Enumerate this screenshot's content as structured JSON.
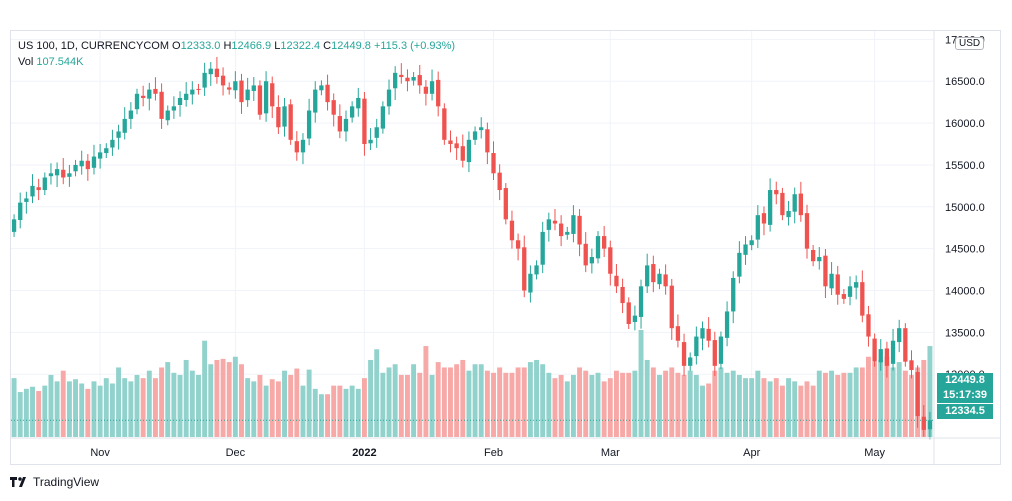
{
  "header": {
    "symbol": "US 100, 1D, CURRENCYCOM",
    "open_label": "O",
    "open": "12333.0",
    "high_label": "H",
    "high": "12466.9",
    "low_label": "L",
    "low": "12322.4",
    "close_label": "C",
    "close": "12449.8",
    "change": "+115.3 (+0.93%)",
    "vol_label": "Vol",
    "vol": "107.544K"
  },
  "currency": "USD",
  "price_tags": {
    "last": "12449.8",
    "countdown": "15:17:39",
    "prev": "12334.5"
  },
  "footer": {
    "brand": "TradingView"
  },
  "colors": {
    "up": "#26a69a",
    "down": "#ef5350",
    "up_vol": "#92d2cc",
    "down_vol": "#f7a9a7",
    "grid": "#f0f3fa"
  },
  "chart_data": {
    "type": "candlestick",
    "y_ticks": [
      13000,
      13500,
      14000,
      14500,
      15000,
      15500,
      16000,
      16500,
      17000
    ],
    "y_tick_labels": [
      "13000.0",
      "13500.0",
      "14000.0",
      "14500.0",
      "15000.0",
      "15500.0",
      "16000.0",
      "16500.0",
      "17000.0"
    ],
    "ylim": [
      12250,
      17100
    ],
    "x_labels": [
      {
        "label": "Nov",
        "index": 14
      },
      {
        "label": "Dec",
        "index": 36
      },
      {
        "label": "2022",
        "index": 57
      },
      {
        "label": "Feb",
        "index": 78
      },
      {
        "label": "Mar",
        "index": 97
      },
      {
        "label": "Apr",
        "index": 120
      },
      {
        "label": "May",
        "index": 140
      }
    ],
    "current_price": 12449.8,
    "closes": [
      14850,
      15050,
      15100,
      15250,
      15200,
      15350,
      15400,
      15450,
      15350,
      15400,
      15500,
      15550,
      15450,
      15600,
      15650,
      15700,
      15800,
      15900,
      16050,
      16150,
      16350,
      16300,
      16400,
      16350,
      16050,
      16150,
      16200,
      16300,
      16350,
      16400,
      16400,
      16600,
      16650,
      16550,
      16450,
      16400,
      16500,
      16250,
      16400,
      16450,
      16100,
      16500,
      16200,
      15950,
      16200,
      15800,
      15650,
      15800,
      16150,
      16400,
      16450,
      16250,
      16100,
      15900,
      16050,
      16200,
      16300,
      15750,
      15800,
      15950,
      16200,
      16400,
      16600,
      16550,
      16500,
      16550,
      16450,
      16350,
      16500,
      16200,
      15800,
      15750,
      15700,
      15550,
      15800,
      15900,
      15950,
      15650,
      15400,
      15200,
      14850,
      14600,
      14500,
      14000,
      14200,
      14300,
      14700,
      14850,
      14800,
      14650,
      14700,
      14900,
      14550,
      14300,
      14400,
      14650,
      14500,
      14200,
      14050,
      13850,
      13600,
      13700,
      14050,
      14300,
      14100,
      14200,
      14050,
      13550,
      13400,
      13100,
      13200,
      13450,
      13550,
      13400,
      13100,
      13450,
      13750,
      14150,
      14450,
      14550,
      14600,
      14900,
      14800,
      15200,
      15150,
      14900,
      14950,
      15150,
      14900,
      14500,
      14350,
      14400,
      14050,
      14200,
      13950,
      13900,
      14050,
      14100,
      13700,
      13450,
      13150,
      13300,
      13100,
      13400,
      13550,
      13150,
      13050,
      12500,
      12334.5,
      12449.8
    ],
    "volumes": [
      55,
      42,
      45,
      47,
      43,
      48,
      58,
      52,
      62,
      52,
      54,
      50,
      45,
      52,
      48,
      55,
      50,
      65,
      55,
      52,
      58,
      55,
      62,
      55,
      65,
      70,
      60,
      58,
      72,
      62,
      58,
      90,
      68,
      72,
      73,
      70,
      75,
      68,
      55,
      52,
      58,
      48,
      54,
      52,
      62,
      58,
      64,
      48,
      63,
      45,
      40,
      40,
      48,
      48,
      45,
      48,
      45,
      55,
      72,
      82,
      60,
      65,
      68,
      58,
      58,
      68,
      60,
      85,
      58,
      70,
      65,
      65,
      68,
      72,
      62,
      68,
      68,
      62,
      60,
      65,
      60,
      60,
      65,
      65,
      70,
      72,
      68,
      60,
      55,
      58,
      52,
      58,
      65,
      62,
      58,
      60,
      52,
      55,
      62,
      60,
      60,
      62,
      100,
      72,
      65,
      58,
      62,
      65,
      60,
      58,
      62,
      58,
      48,
      50,
      62,
      65,
      60,
      62,
      58,
      55,
      55,
      62,
      55,
      52,
      55,
      48,
      55,
      52,
      48,
      52,
      48,
      62,
      60,
      62,
      58,
      60,
      60,
      65,
      65,
      75,
      70,
      72,
      75,
      65,
      70,
      62,
      58,
      65,
      72,
      85
    ]
  }
}
